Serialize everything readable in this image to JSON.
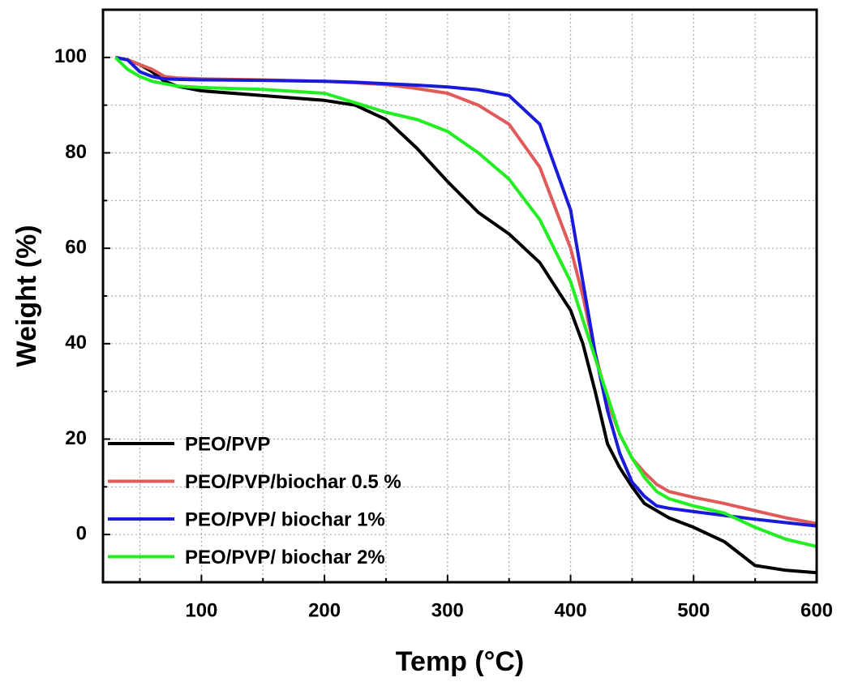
{
  "chart_data": {
    "type": "line",
    "x_label": "Temp (°C)",
    "y_label": "Weight  (%)",
    "x": [
      30,
      40,
      50,
      60,
      70,
      80,
      100,
      150,
      200,
      225,
      250,
      275,
      300,
      325,
      350,
      375,
      400,
      410,
      420,
      430,
      440,
      450,
      460,
      470,
      480,
      500,
      525,
      550,
      575,
      600
    ],
    "series": [
      {
        "name": "PEO/PVP",
        "color": "#000000",
        "values": [
          100,
          99.5,
          98.5,
          97,
          95,
          94,
          93,
          92,
          91,
          90,
          87,
          81,
          74,
          67.5,
          63,
          57,
          47,
          40,
          30,
          19,
          14,
          10,
          6.5,
          5,
          3.5,
          1.5,
          -1.5,
          -6.5,
          -7.5,
          -8
        ]
      },
      {
        "name": "PEO/PVP/biochar 0.5 %",
        "color": "#e05a5a",
        "values": [
          100,
          99.5,
          98.5,
          97.5,
          96,
          95.7,
          95.5,
          95.3,
          95,
          94.7,
          94.3,
          93.5,
          92.5,
          90,
          86,
          77,
          60,
          50,
          38,
          28,
          21,
          16,
          13,
          10.5,
          9,
          7.8,
          6.5,
          5,
          3.5,
          2.3
        ]
      },
      {
        "name": "PEO/PVP/ biochar 1%",
        "color": "#1a1adb",
        "values": [
          100,
          99.5,
          97,
          96,
          95.5,
          95.4,
          95.3,
          95.2,
          95,
          94.8,
          94.5,
          94.2,
          93.8,
          93.2,
          92,
          86,
          68,
          53,
          38,
          26,
          17,
          11,
          8,
          6,
          5.5,
          4.8,
          4,
          3.2,
          2.5,
          1.8
        ]
      },
      {
        "name": "PEO/PVP/ biochar 2%",
        "color": "#22ee22",
        "values": [
          100,
          97.5,
          96,
          95,
          94.5,
          94,
          93.7,
          93.3,
          92.5,
          90.5,
          88.5,
          87,
          84.5,
          80,
          74.5,
          66,
          53,
          45,
          37,
          29,
          21,
          16,
          12,
          9,
          7.5,
          6,
          4.5,
          1.5,
          -1,
          -2.5
        ]
      }
    ],
    "xlim": [
      20,
      600
    ],
    "ylim": [
      -10,
      110
    ],
    "xticks": [
      100,
      200,
      300,
      400,
      500,
      600
    ],
    "yticks": [
      0,
      20,
      40,
      60,
      80,
      100
    ],
    "xminorticks": [
      50,
      150,
      250,
      350,
      450,
      550
    ],
    "yminorticks": [
      -10,
      10,
      30,
      50,
      70,
      90,
      110
    ],
    "grid": true,
    "legend": "lower left"
  }
}
